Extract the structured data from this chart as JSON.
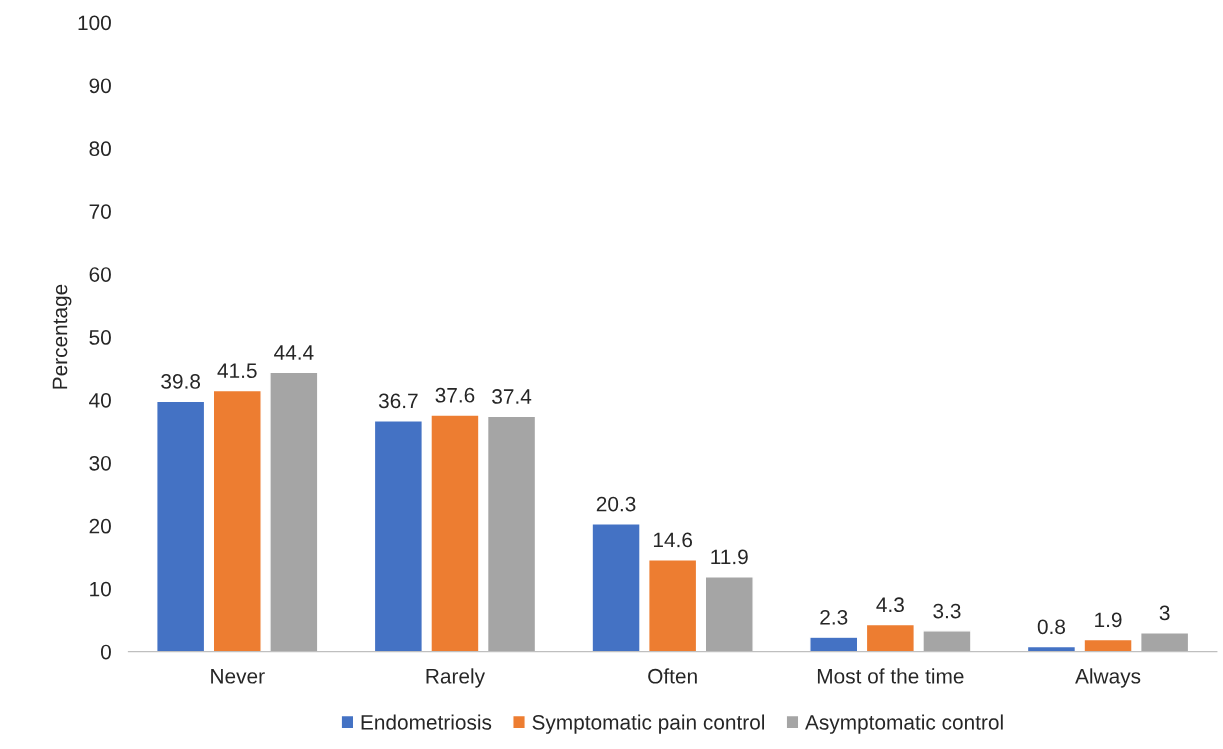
{
  "chart_data": {
    "type": "bar",
    "ylabel": "Percentage",
    "categories": [
      "Never",
      "Rarely",
      "Often",
      "Most of the time",
      "Always"
    ],
    "series": [
      {
        "name": "Endometriosis",
        "color": "#4472c4",
        "values": [
          39.8,
          36.7,
          20.3,
          2.3,
          0.8
        ]
      },
      {
        "name": "Symptomatic pain control",
        "color": "#ed7d31",
        "values": [
          41.5,
          37.6,
          14.6,
          4.3,
          1.9
        ]
      },
      {
        "name": "Asymptomatic control",
        "color": "#a5a5a5",
        "values": [
          44.4,
          37.4,
          11.9,
          3.3,
          3
        ]
      }
    ],
    "ylim": [
      0,
      100
    ],
    "yticks": [
      0,
      10,
      20,
      30,
      40,
      50,
      60,
      70,
      80,
      90,
      100
    ],
    "data_labels": true,
    "grid": false,
    "legend": "bottom"
  }
}
